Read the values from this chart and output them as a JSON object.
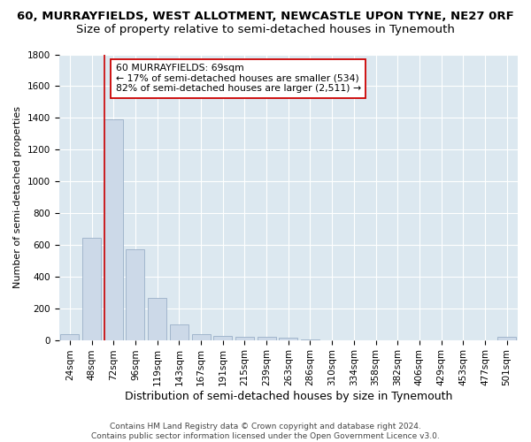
{
  "title_line1": "60, MURRAYFIELDS, WEST ALLOTMENT, NEWCASTLE UPON TYNE, NE27 0RF",
  "title_line2": "Size of property relative to semi-detached houses in Tynemouth",
  "xlabel": "Distribution of semi-detached houses by size in Tynemouth",
  "ylabel": "Number of semi-detached properties",
  "footer": "Contains HM Land Registry data © Crown copyright and database right 2024.\nContains public sector information licensed under the Open Government Licence v3.0.",
  "categories": [
    "24sqm",
    "48sqm",
    "72sqm",
    "96sqm",
    "119sqm",
    "143sqm",
    "167sqm",
    "191sqm",
    "215sqm",
    "239sqm",
    "263sqm",
    "286sqm",
    "310sqm",
    "334sqm",
    "358sqm",
    "382sqm",
    "406sqm",
    "429sqm",
    "453sqm",
    "477sqm",
    "501sqm"
  ],
  "values": [
    35,
    645,
    1390,
    570,
    265,
    100,
    38,
    28,
    22,
    18,
    15,
    5,
    0,
    0,
    0,
    0,
    0,
    0,
    0,
    0,
    18
  ],
  "bar_color": "#ccd9e8",
  "bar_edge_color": "#9ab0c8",
  "property_line_index": 2,
  "property_line_color": "#cc0000",
  "annotation_text": "60 MURRAYFIELDS: 69sqm\n← 17% of semi-detached houses are smaller (534)\n82% of semi-detached houses are larger (2,511) →",
  "annotation_box_facecolor": "#ffffff",
  "annotation_box_edgecolor": "#cc0000",
  "ylim": [
    0,
    1800
  ],
  "yticks": [
    0,
    200,
    400,
    600,
    800,
    1000,
    1200,
    1400,
    1600,
    1800
  ],
  "plot_bg_color": "#dce8f0",
  "title1_fontsize": 9.5,
  "title2_fontsize": 9.5,
  "ylabel_fontsize": 8,
  "xlabel_fontsize": 9,
  "tick_fontsize": 7.5,
  "annotation_fontsize": 7.8,
  "footer_fontsize": 6.5
}
